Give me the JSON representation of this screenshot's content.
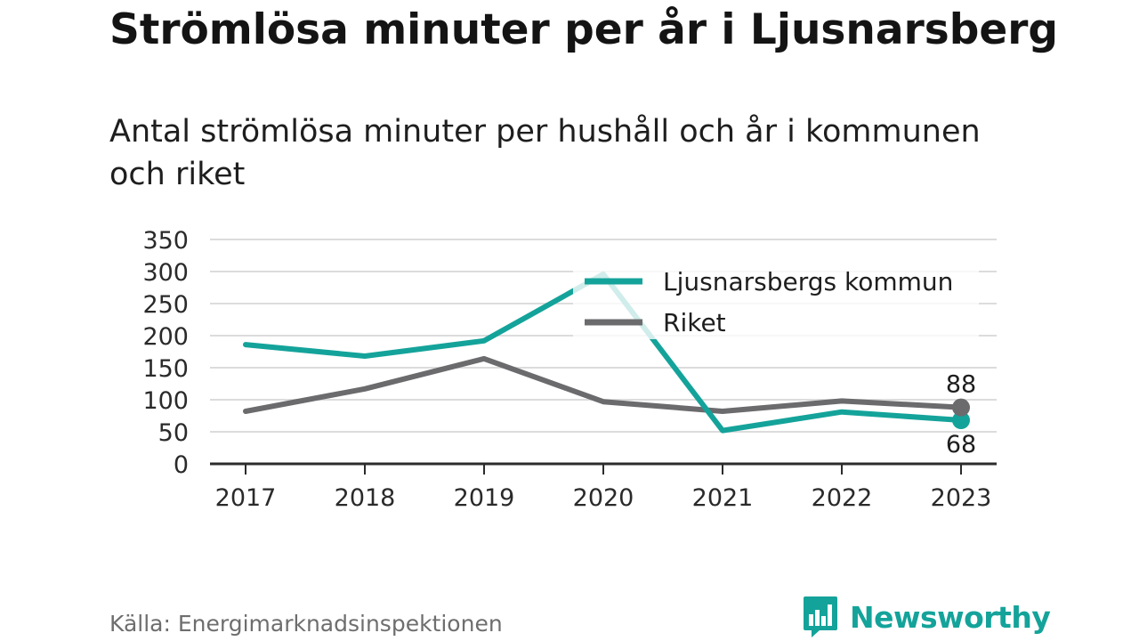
{
  "title": "Strömlösa minuter per år i Ljusnarsberg",
  "subtitle": "Antal strömlösa minuter per hushåll och år i kommunen och riket",
  "source": "Källa: Energimarknadsinspektionen",
  "brand": {
    "name": "Newsworthy",
    "logo_icon": "newsworthy-bar-chart-logo-icon",
    "color": "#14a39a"
  },
  "chart_data": {
    "type": "line",
    "title": "Strömlösa minuter per år i Ljusnarsberg",
    "subtitle": "Antal strömlösa minuter per hushåll och år i kommunen och riket",
    "xlabel": "",
    "ylabel": "",
    "categories": [
      "2017",
      "2018",
      "2019",
      "2020",
      "2021",
      "2022",
      "2023"
    ],
    "ylim": [
      0,
      350
    ],
    "yticks": [
      0,
      50,
      100,
      150,
      200,
      250,
      300,
      350
    ],
    "grid": true,
    "legend_placement": "top-right",
    "series": [
      {
        "name": "Ljusnarsbergs kommun",
        "color": "#14a39a",
        "values": [
          186,
          168,
          192,
          296,
          52,
          81,
          68
        ],
        "end_label": "68"
      },
      {
        "name": "Riket",
        "color": "#6b6b6e",
        "values": [
          82,
          117,
          164,
          97,
          82,
          98,
          88
        ],
        "end_label": "88"
      }
    ]
  }
}
